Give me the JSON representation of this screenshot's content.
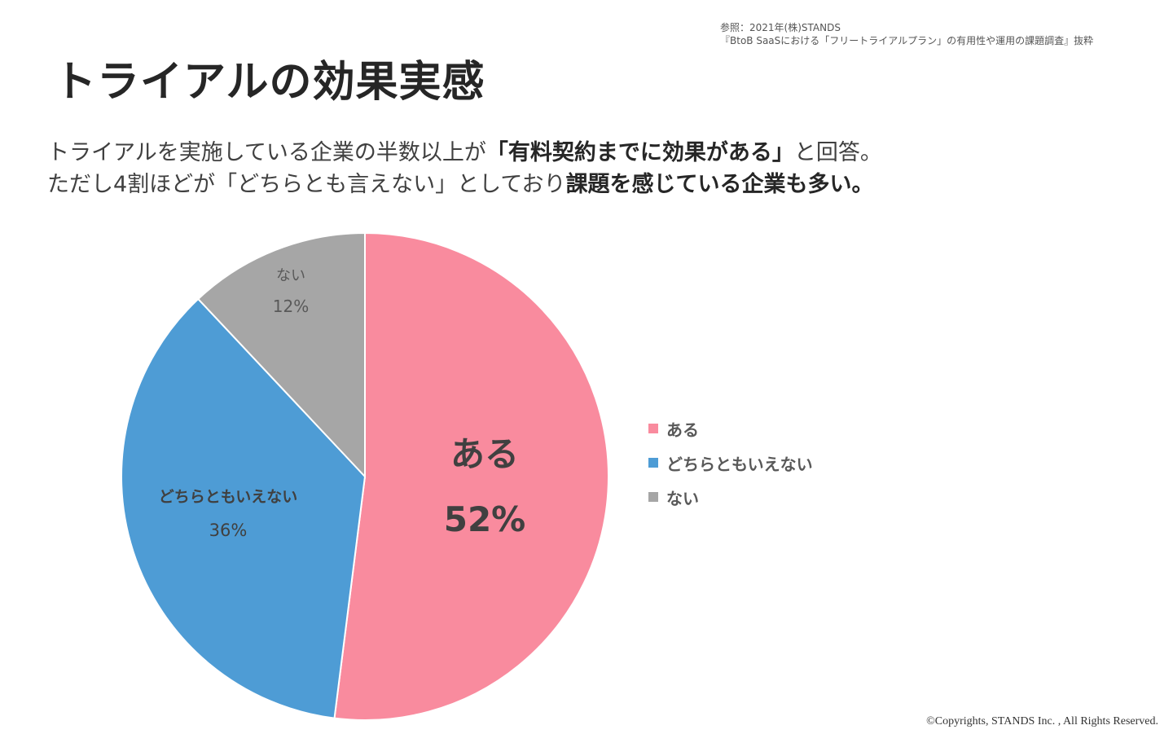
{
  "reference": {
    "line1": "参照：2021年(株)STANDS",
    "line2": "『BtoB SaaSにおける「フリートライアルプラン」の有用性や運用の課題調査』抜粋"
  },
  "title": "トライアルの効果実感",
  "subtitle": {
    "l1a": "トライアルを実施している企業の半数以上が",
    "l1b": "「有料契約までに効果がある」",
    "l1c": "と回答。",
    "l2a": "ただし4割ほどが「どちらとも言えない」としており",
    "l2b": "課題を感じている企業も多い。"
  },
  "chart_data": {
    "type": "pie",
    "start": "12 o'clock, clockwise",
    "slices": [
      {
        "label": "ある",
        "value": 52,
        "display": "52%",
        "color": "#F98B9E"
      },
      {
        "label": "どちらともいえない",
        "value": 36,
        "display": "36%",
        "color": "#4E9CD5"
      },
      {
        "label": "ない",
        "value": 12,
        "display": "12%",
        "color": "#A6A6A6"
      }
    ],
    "legend_position": "right"
  },
  "copyright": "©Copyrights, STANDS Inc. , All Rights Reserved."
}
